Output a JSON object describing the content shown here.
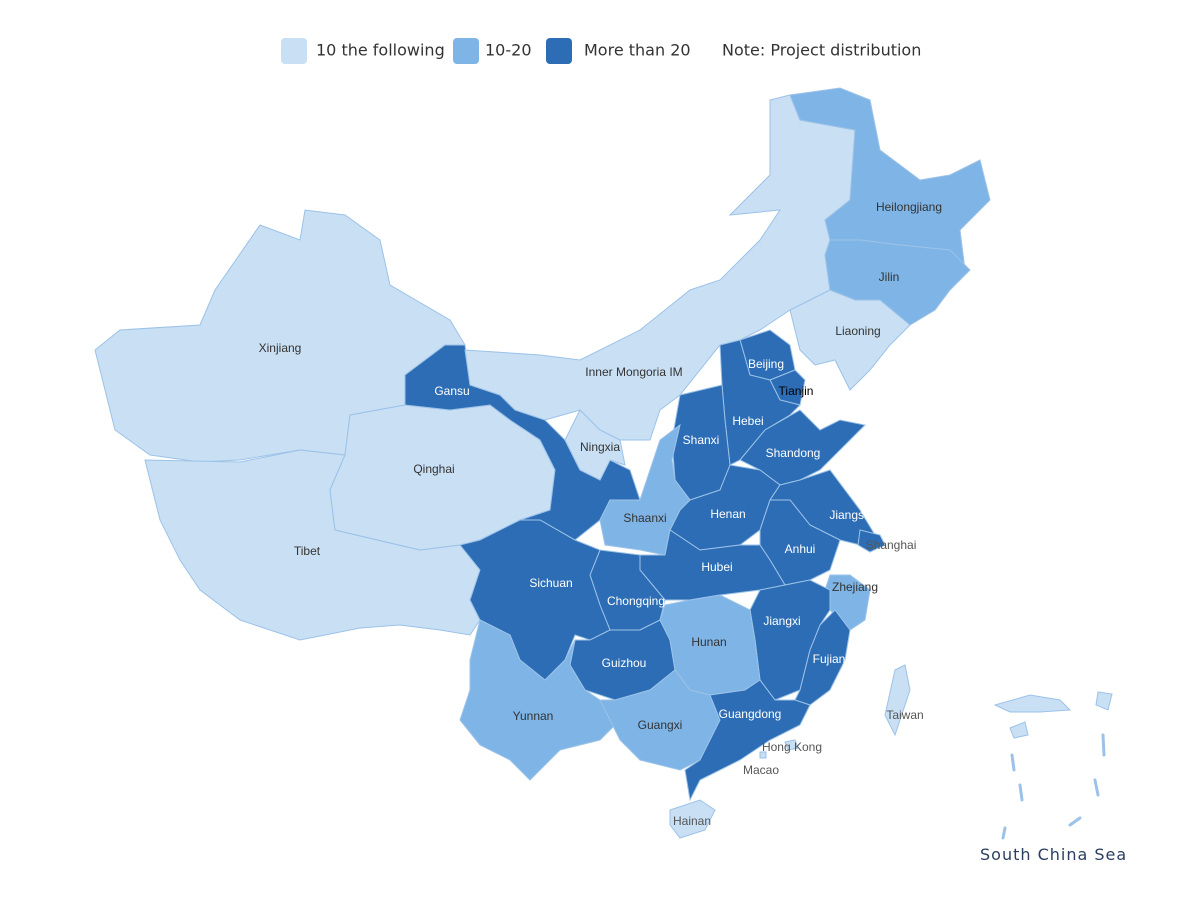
{
  "legend": [
    {
      "label": "10 the following",
      "color": "#c8dff4"
    },
    {
      "label": "10-20",
      "color": "#7fb5e6"
    },
    {
      "label": "More than 20",
      "color": "#2c6db5"
    }
  ],
  "note": "Note: Project distribution",
  "inset_label": "South China Sea",
  "regions": [
    {
      "name": "Xinjiang",
      "level": 0
    },
    {
      "name": "Tibet",
      "level": 0
    },
    {
      "name": "Qinghai",
      "level": 0
    },
    {
      "name": "Gansu",
      "level": 2
    },
    {
      "name": "Inner  Mongoria  IM",
      "level": 0
    },
    {
      "name": "Heilongjiang",
      "level": 1
    },
    {
      "name": "Jilin",
      "level": 1
    },
    {
      "name": "Liaoning",
      "level": 0
    },
    {
      "name": "Beijing",
      "level": 2
    },
    {
      "name": "Tianjin",
      "level": 2
    },
    {
      "name": "Hebei",
      "level": 2
    },
    {
      "name": "Shanxi",
      "level": 2
    },
    {
      "name": "Shandong",
      "level": 2
    },
    {
      "name": "Henan",
      "level": 2
    },
    {
      "name": "Jiangsu",
      "level": 2
    },
    {
      "name": "Shanghai",
      "level": 2
    },
    {
      "name": "Anhui",
      "level": 2
    },
    {
      "name": "Shaanxi",
      "level": 1
    },
    {
      "name": "Ningxia",
      "level": 0
    },
    {
      "name": "Hubei",
      "level": 2
    },
    {
      "name": "Chongqing",
      "level": 2
    },
    {
      "name": "Sichuan",
      "level": 2
    },
    {
      "name": "Guizhou",
      "level": 2
    },
    {
      "name": "Zhejiang",
      "level": 1
    },
    {
      "name": "Jiangxi",
      "level": 2
    },
    {
      "name": "Fujian",
      "level": 2
    },
    {
      "name": "Hunan",
      "level": 1
    },
    {
      "name": "Yunnan",
      "level": 1
    },
    {
      "name": "Guangxi",
      "level": 1
    },
    {
      "name": "Guangdong",
      "level": 2
    },
    {
      "name": "Taiwan",
      "level": 0
    },
    {
      "name": "Hong  Kong",
      "level": 0
    },
    {
      "name": "Macao",
      "level": 0
    },
    {
      "name": "Hainan",
      "level": 0
    }
  ]
}
